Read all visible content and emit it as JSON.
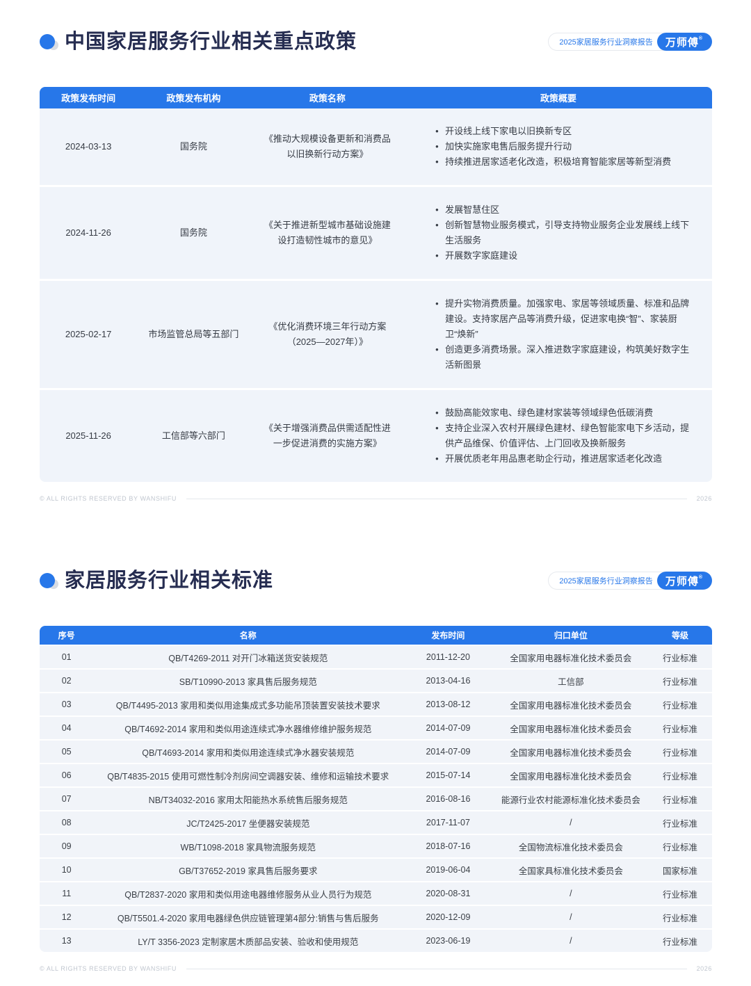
{
  "colors": {
    "accent_blue": "#2777E9",
    "title_navy": "#262D51",
    "row_bg": "#F0F4FA"
  },
  "brand": {
    "report_badge": "2025家居服务行业洞察报告",
    "logo": "万师傅",
    "logo_reg": "®"
  },
  "footer": {
    "copyright": "© ALL RIGHTS RESERVED BY WANSHIFU",
    "page": "2026"
  },
  "section1": {
    "title": "中国家居服务行业相关重点政策",
    "table": {
      "headers": [
        "政策发布时间",
        "政策发布机构",
        "政策名称",
        "政策概要"
      ],
      "rows": [
        {
          "date": "2024-03-13",
          "org": "国务院",
          "name": "《推动大规模设备更新和消费品以旧换新行动方案》",
          "summary": [
            "开设线上线下家电以旧换新专区",
            "加快实施家电售后服务提升行动",
            "持续推进居家适老化改造，积极培育智能家居等新型消费"
          ]
        },
        {
          "date": "2024-11-26",
          "org": "国务院",
          "name": "《关于推进新型城市基础设施建设打造韧性城市的意见》",
          "summary": [
            "发展智慧住区",
            "创新智慧物业服务模式，引导支持物业服务企业发展线上线下生活服务",
            "开展数字家庭建设"
          ]
        },
        {
          "date": "2025-02-17",
          "org": "市场监管总局等五部门",
          "name": "《优化消费环境三年行动方案（2025—2027年）》",
          "summary": [
            "提升实物消费质量。加强家电、家居等领域质量、标准和品牌建设。支持家居产品等消费升级，促进家电换“智”、家装厨卫“焕新”",
            "创造更多消费场景。深入推进数字家庭建设，构筑美好数字生活新图景"
          ]
        },
        {
          "date": "2025-11-26",
          "org": "工信部等六部门",
          "name": "《关于增强消费品供需适配性进一步促进消费的实施方案》",
          "summary": [
            "鼓励高能效家电、绿色建材家装等领域绿色低碳消费",
            "支持企业深入农村开展绿色建材、绿色智能家电下乡活动，提供产品维保、价值评估、上门回收及换新服务",
            "开展优质老年用品惠老助企行动，推进居家适老化改造"
          ]
        }
      ]
    }
  },
  "section2": {
    "title": "家居服务行业相关标准",
    "table": {
      "headers": [
        "序号",
        "名称",
        "发布时间",
        "归口单位",
        "等级"
      ],
      "rows": [
        [
          "01",
          "QB/T4269-2011 对开门冰箱送货安装规范",
          "2011-12-20",
          "全国家用电器标准化技术委员会",
          "行业标准"
        ],
        [
          "02",
          "SB/T10990-2013 家具售后服务规范",
          "2013-04-16",
          "工信部",
          "行业标准"
        ],
        [
          "03",
          "QB/T4495-2013 家用和类似用途集成式多功能吊顶装置安装技术要求",
          "2013-08-12",
          "全国家用电器标准化技术委员会",
          "行业标准"
        ],
        [
          "04",
          "QB/T4692-2014 家用和类似用途连续式净水器维修维护服务规范",
          "2014-07-09",
          "全国家用电器标准化技术委员会",
          "行业标准"
        ],
        [
          "05",
          "QB/T4693-2014 家用和类似用途连续式净水器安装规范",
          "2014-07-09",
          "全国家用电器标准化技术委员会",
          "行业标准"
        ],
        [
          "06",
          "QB/T4835-2015 使用可燃性制冷剂房间空调器安装、维修和运输技术要求",
          "2015-07-14",
          "全国家用电器标准化技术委员会",
          "行业标准"
        ],
        [
          "07",
          "NB/T34032-2016 家用太阳能热水系统售后服务规范",
          "2016-08-16",
          "能源行业农村能源标准化技术委员会",
          "行业标准"
        ],
        [
          "08",
          "JC/T2425-2017 坐便器安装规范",
          "2017-11-07",
          "/",
          "行业标准"
        ],
        [
          "09",
          "WB/T1098-2018 家具物流服务规范",
          "2018-07-16",
          "全国物流标准化技术委员会",
          "行业标准"
        ],
        [
          "10",
          "GB/T37652-2019 家具售后服务要求",
          "2019-06-04",
          "全国家具标准化技术委员会",
          "国家标准"
        ],
        [
          "11",
          "QB/T2837-2020 家用和类似用途电器维修服务从业人员行为规范",
          "2020-08-31",
          "/",
          "行业标准"
        ],
        [
          "12",
          "QB/T5501.4-2020 家用电器绿色供应链管理第4部分:销售与售后服务",
          "2020-12-09",
          "/",
          "行业标准"
        ],
        [
          "13",
          "LY/T 3356-2023 定制家居木质部品安装、验收和使用规范",
          "2023-06-19",
          "/",
          "行业标准"
        ]
      ]
    }
  }
}
